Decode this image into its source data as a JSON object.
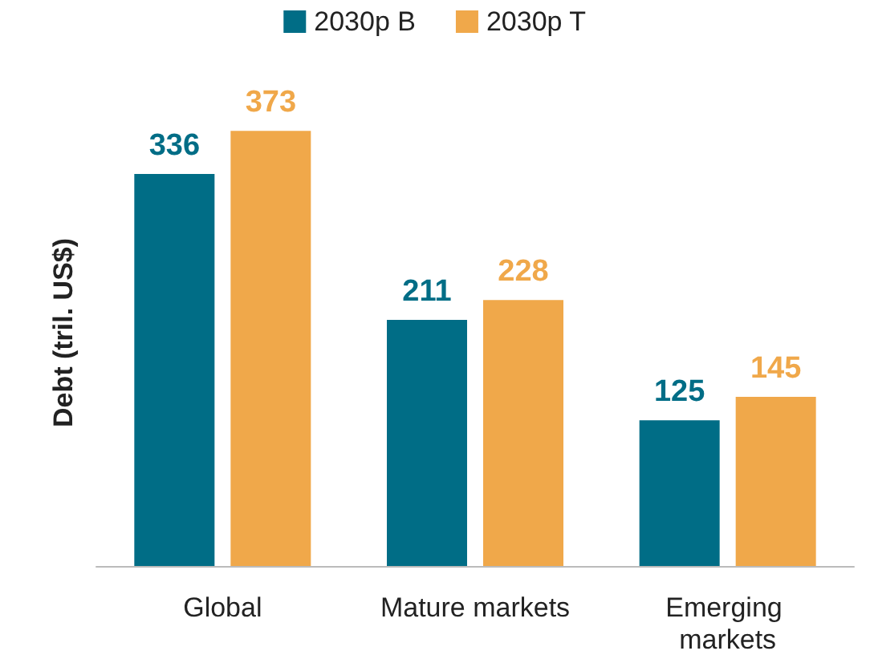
{
  "chart_data": {
    "type": "bar",
    "ylabel": "Debt (tril. US$)",
    "categories": [
      "Global",
      "Mature markets",
      "Emerging markets"
    ],
    "series": [
      {
        "name": "2030p B",
        "color": "#006d86",
        "values": [
          336,
          211,
          125
        ]
      },
      {
        "name": "2030p T",
        "color": "#f0a84a",
        "values": [
          373,
          228,
          145
        ]
      }
    ],
    "data_labels": true,
    "legend": "top",
    "grid": false
  }
}
